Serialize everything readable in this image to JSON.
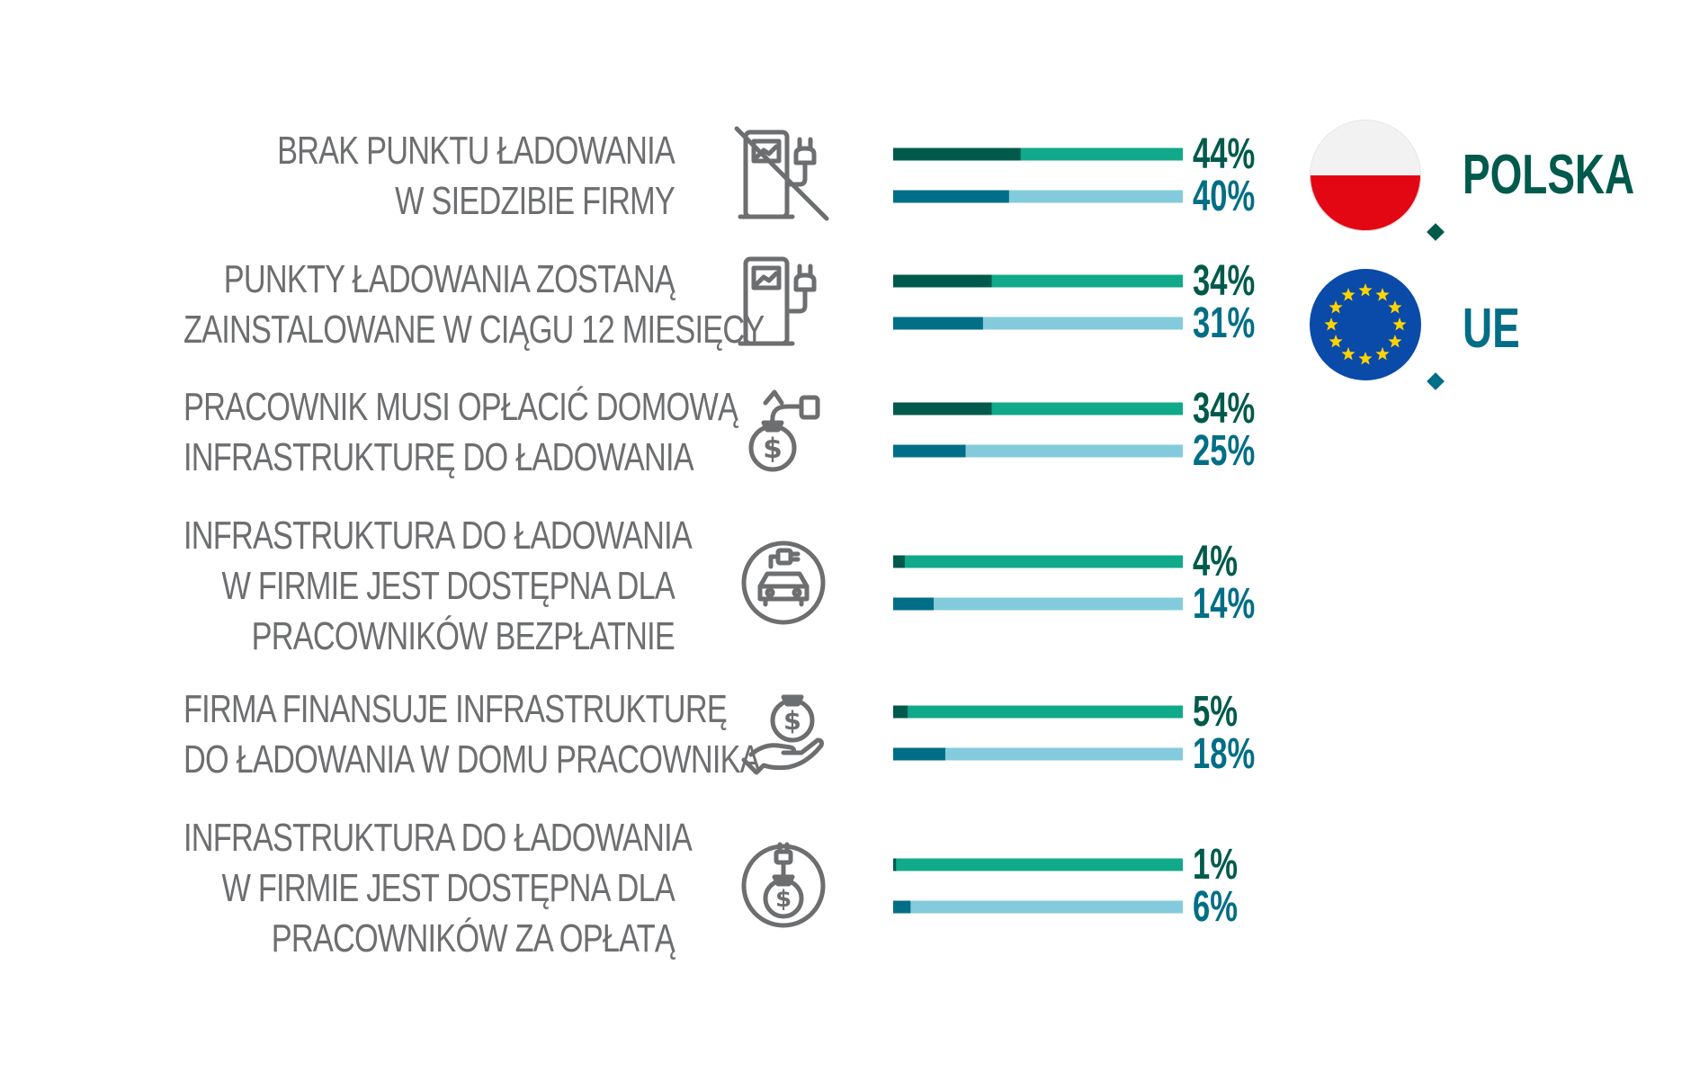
{
  "chart_data": {
    "type": "bar",
    "orientation": "horizontal",
    "categories": [
      [
        "BRAK PUNKTU ŁADOWANIA",
        "W SIEDZIBIE FIRMY"
      ],
      [
        "PUNKTY ŁADOWANIA ZOSTANĄ",
        "ZAINSTALOWANE W CIĄGU 12 MIESIĘCY"
      ],
      [
        "PRACOWNIK MUSI OPŁACIĆ DOMOWĄ",
        "INFRASTRUKTURĘ DO ŁADOWANIA"
      ],
      [
        "INFRASTRUKTURA DO ŁADOWANIA",
        "W FIRMIE JEST DOSTĘPNA DLA",
        "PRACOWNIKÓW BEZPŁATNIE"
      ],
      [
        "FIRMA FINANSUJE INFRASTRUKTURĘ",
        "DO ŁADOWANIA W DOMU PRACOWNIKA"
      ],
      [
        "INFRASTRUKTURA DO ŁADOWANIA",
        "W FIRMIE JEST DOSTĘPNA DLA",
        "PRACOWNIKÓW ZA OPŁATĄ"
      ]
    ],
    "icons": [
      "no-charger-icon",
      "charging-station-icon",
      "money-bag-plug-icon",
      "car-plug-icon",
      "hand-money-bag-icon",
      "plug-money-bag-icon"
    ],
    "series": [
      {
        "name": "POLSKA",
        "values": [
          44,
          34,
          34,
          4,
          5,
          1
        ],
        "labels": [
          "44%",
          "34%",
          "34%",
          "4%",
          "5%",
          "1%"
        ],
        "color_fill": "#005a4b",
        "color_track": "#10a98a"
      },
      {
        "name": "UE",
        "values": [
          40,
          31,
          25,
          14,
          18,
          6
        ],
        "labels": [
          "40%",
          "31%",
          "25%",
          "14%",
          "18%",
          "6%"
        ],
        "color_fill": "#006e86",
        "color_track": "#83cbdc"
      }
    ],
    "xlim": [
      0,
      100
    ],
    "legend": "right",
    "legend_items": [
      {
        "name": "POLSKA",
        "flag": "poland-flag-icon"
      },
      {
        "name": "UE",
        "flag": "eu-flag-icon"
      }
    ]
  }
}
